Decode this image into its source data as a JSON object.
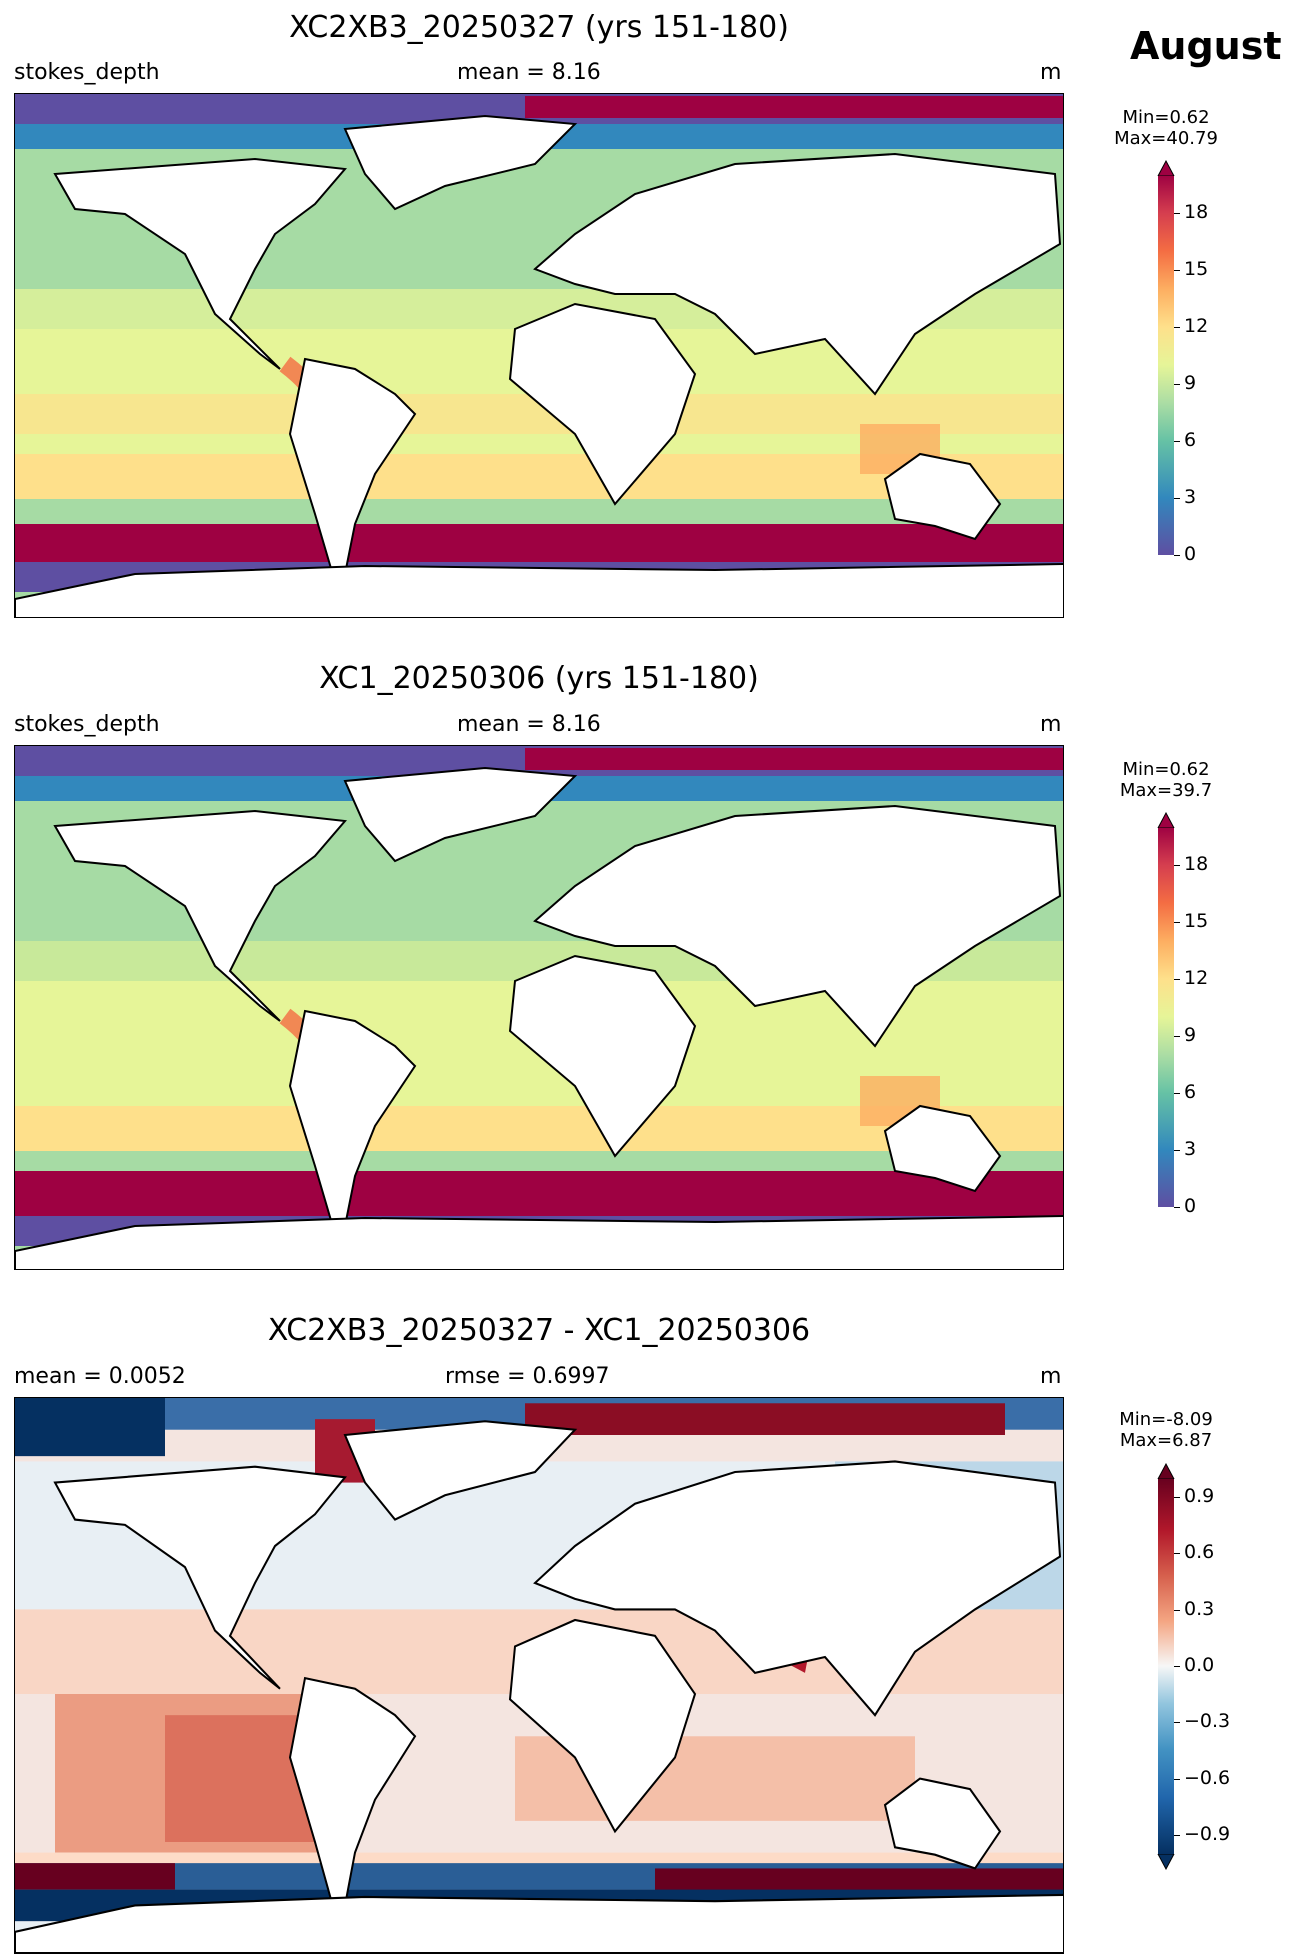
{
  "figure": {
    "month": "August"
  },
  "panels": [
    {
      "title": "XC2XB3_20250327 (yrs 151-180)",
      "left": "stokes_depth",
      "center": "mean = 8.16",
      "right": "m",
      "colorbar": {
        "min_label": "Min=0.62",
        "max_label": "Max=40.79",
        "ticks": [
          "0",
          "3",
          "6",
          "9",
          "12",
          "15",
          "18"
        ],
        "range": [
          0,
          20
        ],
        "colormap": "Spectral_r"
      }
    },
    {
      "title": "XC1_20250306 (yrs 151-180)",
      "left": "stokes_depth",
      "center": "mean = 8.16",
      "right": "m",
      "colorbar": {
        "min_label": "Min=0.62",
        "max_label": "Max=39.7",
        "ticks": [
          "0",
          "3",
          "6",
          "9",
          "12",
          "15",
          "18"
        ],
        "range": [
          0,
          20
        ],
        "colormap": "Spectral_r"
      }
    },
    {
      "title": "XC2XB3_20250327 - XC1_20250306",
      "left": "mean = 0.0052",
      "center": "rmse = 0.6997",
      "right": "m",
      "colorbar": {
        "min_label": "Min=-8.09",
        "max_label": "Max=6.87",
        "ticks": [
          "0.9",
          "0.6",
          "0.3",
          "0.0",
          "−0.3",
          "−0.6",
          "−0.9"
        ],
        "range": [
          -1,
          1
        ],
        "colormap": "RdBu_r"
      }
    }
  ]
}
